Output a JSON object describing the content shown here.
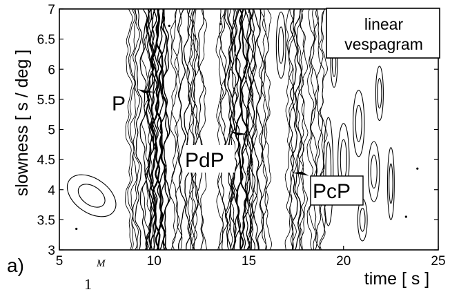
{
  "chart_data": {
    "type": "contour",
    "title": "",
    "panel_label": "a)",
    "legend_lines": [
      "linear",
      "vespagram"
    ],
    "xlabel": "time [ s ]",
    "ylabel": "slowness [ s / deg ]",
    "xlim": [
      5,
      25
    ],
    "ylim": [
      3,
      7
    ],
    "x_ticks": [
      {
        "value": 5,
        "label": "5"
      },
      {
        "value": 10,
        "label": "10"
      },
      {
        "value": 15,
        "label": "15"
      },
      {
        "value": 20,
        "label": "20"
      },
      {
        "value": 25,
        "label": "25"
      }
    ],
    "y_ticks": [
      {
        "value": 3,
        "label": "3"
      },
      {
        "value": 3.5,
        "label": "3.5"
      },
      {
        "value": 4,
        "label": "4"
      },
      {
        "value": 4.5,
        "label": "4.5"
      },
      {
        "value": 5,
        "label": "5"
      },
      {
        "value": 5.5,
        "label": "5.5"
      },
      {
        "value": 6,
        "label": "6"
      },
      {
        "value": 6.5,
        "label": "6.5"
      },
      {
        "value": 7,
        "label": "7"
      }
    ],
    "phase_picks": [
      {
        "label": "P",
        "time": 9.5,
        "slowness": 5.6,
        "boxed": false
      },
      {
        "label": "PdP",
        "time": 14.4,
        "slowness": 4.9,
        "boxed": true
      },
      {
        "label": "PcP",
        "time": 17.8,
        "slowness": 4.3,
        "boxed": true
      }
    ],
    "contour_bands": [
      {
        "center": 9.3,
        "halfwidth": 0.65,
        "levels": 5,
        "weight": 1.2
      },
      {
        "center": 10.2,
        "halfwidth": 0.45,
        "levels": 5,
        "weight": 2.4
      },
      {
        "center": 11.6,
        "halfwidth": 0.6,
        "levels": 4,
        "weight": 1.3
      },
      {
        "center": 12.3,
        "halfwidth": 0.3,
        "levels": 2,
        "weight": 1.1
      },
      {
        "center": 13.8,
        "halfwidth": 0.35,
        "levels": 3,
        "weight": 1.1
      },
      {
        "center": 14.6,
        "halfwidth": 0.55,
        "levels": 5,
        "weight": 2.0
      },
      {
        "center": 15.5,
        "halfwidth": 0.5,
        "levels": 4,
        "weight": 1.2
      },
      {
        "center": 17.5,
        "halfwidth": 0.4,
        "levels": 4,
        "weight": 1.3
      },
      {
        "center": 18.6,
        "halfwidth": 0.35,
        "levels": 3,
        "weight": 1.0
      }
    ],
    "contour_blobs": [
      {
        "t": 6.7,
        "s": 3.9,
        "rt": 0.9,
        "rs": 0.45,
        "rot": -55
      },
      {
        "t": 16.7,
        "s": 6.4,
        "rt": 0.25,
        "rs": 0.55,
        "rot": 0
      },
      {
        "t": 19.2,
        "s": 4.3,
        "rt": 0.25,
        "rs": 0.9,
        "rot": 0
      },
      {
        "t": 20.0,
        "s": 4.5,
        "rt": 0.3,
        "rs": 0.6,
        "rot": 0
      },
      {
        "t": 20.8,
        "s": 5.1,
        "rt": 0.3,
        "rs": 0.55,
        "rot": 0
      },
      {
        "t": 21.6,
        "s": 4.3,
        "rt": 0.3,
        "rs": 0.5,
        "rot": 0
      },
      {
        "t": 21.9,
        "s": 5.6,
        "rt": 0.2,
        "rs": 0.45,
        "rot": 0
      },
      {
        "t": 22.5,
        "s": 4.1,
        "rt": 0.18,
        "rs": 0.6,
        "rot": 0
      },
      {
        "t": 19.5,
        "s": 6.1,
        "rt": 0.18,
        "rs": 0.4,
        "rot": 0
      },
      {
        "t": 21.0,
        "s": 3.5,
        "rt": 0.25,
        "rs": 0.35,
        "rot": 0
      }
    ],
    "contour_dots": [
      {
        "t": 5.9,
        "s": 3.35
      },
      {
        "t": 10.8,
        "s": 6.72
      },
      {
        "t": 13.5,
        "s": 6.75
      },
      {
        "t": 23.3,
        "s": 3.55
      },
      {
        "t": 23.9,
        "s": 4.35
      }
    ]
  },
  "stray_marks": {
    "digit": "1",
    "superscript": "M"
  }
}
